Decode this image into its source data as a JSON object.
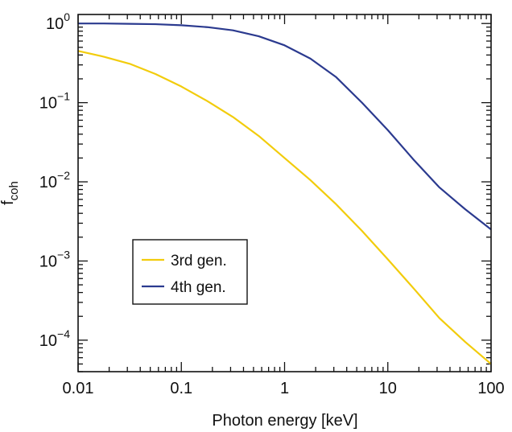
{
  "chart_data": {
    "type": "line",
    "title": "",
    "xlabel": "Photon energy [keV]",
    "ylabel": {
      "base": "f",
      "sub": "coh"
    },
    "x_scale": "log",
    "y_scale": "log",
    "xlim": [
      0.01,
      100
    ],
    "ylim": [
      4e-05,
      1.3
    ],
    "x_ticks": [
      {
        "value": 0.01,
        "label": "0.01"
      },
      {
        "value": 0.1,
        "label": "0.1"
      },
      {
        "value": 1,
        "label": "1"
      },
      {
        "value": 10,
        "label": "10"
      },
      {
        "value": 100,
        "label": "100"
      }
    ],
    "y_ticks": [
      {
        "value": 1,
        "base": "10",
        "exp": "0"
      },
      {
        "value": 0.1,
        "base": "10",
        "exp": "−1"
      },
      {
        "value": 0.01,
        "base": "10",
        "exp": "−2"
      },
      {
        "value": 0.001,
        "base": "10",
        "exp": "−3"
      },
      {
        "value": 0.0001,
        "base": "10",
        "exp": "−4"
      }
    ],
    "grid": false,
    "legend": {
      "position": "lower-left"
    },
    "series": [
      {
        "name": "3rd gen.",
        "color": "#f2cc0c",
        "points": [
          [
            0.01,
            0.45
          ],
          [
            0.0178,
            0.38
          ],
          [
            0.0316,
            0.31
          ],
          [
            0.0562,
            0.23
          ],
          [
            0.1,
            0.16
          ],
          [
            0.178,
            0.105
          ],
          [
            0.316,
            0.066
          ],
          [
            0.562,
            0.038
          ],
          [
            1,
            0.02
          ],
          [
            1.78,
            0.0105
          ],
          [
            3.16,
            0.0052
          ],
          [
            5.62,
            0.0024
          ],
          [
            10,
            0.00105
          ],
          [
            17.8,
            0.00045
          ],
          [
            31.6,
            0.00019
          ],
          [
            56.2,
            9.5e-05
          ],
          [
            100,
            5e-05
          ]
        ]
      },
      {
        "name": "4th gen.",
        "color": "#2b3a8f",
        "points": [
          [
            0.01,
            1.0
          ],
          [
            0.0178,
            1.0
          ],
          [
            0.0316,
            0.99
          ],
          [
            0.0562,
            0.98
          ],
          [
            0.1,
            0.95
          ],
          [
            0.178,
            0.9
          ],
          [
            0.316,
            0.82
          ],
          [
            0.562,
            0.69
          ],
          [
            1,
            0.53
          ],
          [
            1.78,
            0.36
          ],
          [
            3.16,
            0.21
          ],
          [
            5.62,
            0.1
          ],
          [
            10,
            0.045
          ],
          [
            17.8,
            0.019
          ],
          [
            31.6,
            0.0085
          ],
          [
            56.2,
            0.0045
          ],
          [
            100,
            0.0025
          ]
        ]
      }
    ]
  }
}
